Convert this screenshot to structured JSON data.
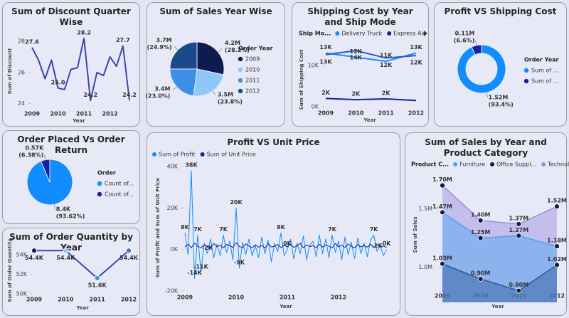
{
  "chart_data": [
    {
      "type": "line",
      "title": "Sum of Discount Quarter Wise",
      "x_label": "Year",
      "y_label": "Sum of Discount",
      "categories": [
        "2009",
        null,
        null,
        null,
        "2010",
        null,
        null,
        null,
        "2011",
        null,
        null,
        null,
        "2012",
        null,
        null,
        null
      ],
      "series": [
        {
          "color": "#3b47b0",
          "values": [
            27.6,
            26.8,
            25.6,
            26.8,
            25.0,
            24.9,
            26.2,
            26.3,
            28.2,
            24.2,
            26.0,
            25.8,
            27.0,
            26.4,
            27.7,
            24.2
          ],
          "value_labels": [
            "27.6",
            null,
            null,
            null,
            "25.0",
            null,
            null,
            null,
            "28.2",
            "24.2",
            null,
            null,
            null,
            null,
            "27.7",
            "24.2"
          ],
          "label_position": "above"
        }
      ],
      "ylim": [
        23.8,
        28.6
      ],
      "yticks": [
        24,
        26,
        28
      ]
    },
    {
      "type": "pie",
      "title": "Sum of Sales Year Wise",
      "legend_title": "Order Year",
      "categories": [
        "2009",
        "2010",
        "2011",
        "2012"
      ],
      "values": [
        4200000,
        3500000,
        3400000,
        3700000
      ],
      "value_labels": [
        "4.2M",
        "3.5M",
        "3.4M",
        "3.7M"
      ],
      "percent_labels": [
        "(28.2%)",
        "(23.8%)",
        "(23.0%)",
        "(24.9%)"
      ],
      "colors": [
        "#0d1b4f",
        "#8fc7f7",
        "#3d8fe6",
        "#1a4a8c"
      ]
    },
    {
      "type": "line",
      "title": "Shipping Cost by Year and Ship Mode",
      "x_label": "Year",
      "y_label": "Sum of Shipping Cost",
      "legend_title": "Ship Mo...",
      "categories": [
        "2009",
        "2010",
        "2011",
        "2012"
      ],
      "series": [
        {
          "name": "Delivery Truck",
          "color": "#118dff",
          "values": [
            13000,
            12000,
            11000,
            13000
          ],
          "value_labels": [
            "13K",
            "12K",
            "11K",
            "13K"
          ],
          "label_position": "above"
        },
        {
          "name": "Express Air",
          "color": "#12239e",
          "values": [
            2000,
            1700,
            1900,
            1500
          ],
          "value_labels": [
            "2K",
            "2K",
            "2K",
            null
          ],
          "label_position": "above"
        },
        {
          "color": "#2f55c8",
          "values": [
            12600,
            13600,
            11800,
            12400
          ],
          "value_labels": [
            "13K",
            "14K",
            "12K",
            "12K"
          ],
          "label_position": "below"
        }
      ],
      "ylim": [
        0,
        15000
      ],
      "yticks": [
        {
          "value": 0,
          "label": "0K"
        },
        {
          "value": 10000,
          "label": "10K"
        }
      ]
    },
    {
      "type": "donut",
      "title": "Profit VS Shipping Cost",
      "legend_title": "Order Year",
      "categories": [
        "Sum of ...",
        "Sum of ..."
      ],
      "values": [
        1520000,
        110000
      ],
      "value_labels": [
        "1.52M",
        "0.11M"
      ],
      "percent_labels": [
        "(93.4%)",
        "(6.6%)"
      ],
      "colors": [
        "#118dff",
        "#12239e"
      ]
    },
    {
      "type": "pie",
      "title": "Order Placed Vs Order Return",
      "legend_title": "Order",
      "categories": [
        "Count of...",
        "Count of..."
      ],
      "values": [
        8400,
        570
      ],
      "value_labels": [
        "8.4K",
        "0.57K"
      ],
      "percent_labels": [
        "(93.62%)",
        "(6.38%)"
      ],
      "colors": [
        "#118dff",
        "#12239e"
      ]
    },
    {
      "type": "line",
      "title": "Sum of Order Quantity by Year",
      "x_label": "Year",
      "y_label": "Sum of Order Quantity",
      "categories": [
        "2009",
        "2010",
        "2011",
        "2012"
      ],
      "series": [
        {
          "color": "#3b47b0",
          "values": [
            54400,
            54400,
            51600,
            54400
          ],
          "value_labels": [
            "54.4K",
            "54.4K",
            "51.6K",
            "54.4K"
          ],
          "label_position": "below",
          "marker_colors": [
            "#0d1b4f",
            "#8fc7f7",
            "#3d8fe6",
            "#3f6fd0"
          ]
        }
      ],
      "ylim": [
        50000,
        55000
      ],
      "yticks": [
        {
          "value": 50000,
          "label": "50K"
        },
        {
          "value": 52000,
          "label": "52K"
        },
        {
          "value": 54000,
          "label": "54K"
        }
      ]
    },
    {
      "type": "line",
      "title": "Profit VS Unit Price",
      "x_label": "Year",
      "y_label": "Sum of Profit and Sum of Unit Price",
      "categories": [
        "2009",
        null,
        null,
        null,
        null,
        null,
        null,
        null,
        null,
        null,
        null,
        null,
        null,
        null,
        null,
        null,
        "2010",
        null,
        null,
        null,
        null,
        null,
        null,
        null,
        null,
        null,
        null,
        null,
        null,
        null,
        null,
        null,
        "2011",
        null,
        null,
        null,
        null,
        null,
        null,
        null,
        null,
        null,
        null,
        null,
        null,
        null,
        null,
        null,
        "2012",
        null,
        null,
        null,
        null,
        null,
        null,
        null,
        null,
        null,
        null,
        null,
        null,
        null,
        null,
        null
      ],
      "series": [
        {
          "name": "Sum of Profit",
          "color": "#118dff",
          "label_position": "above",
          "values": [
            8000,
            -2500,
            38000,
            -14000,
            7000,
            -11000,
            3000,
            -2000,
            5000,
            -4000,
            2500,
            -3000,
            7000,
            -1500,
            4000,
            -5000,
            20000,
            -9000,
            3500,
            -2500,
            5000,
            -3000,
            2000,
            -4000,
            6000,
            -2000,
            4500,
            -6000,
            3000,
            -1000,
            8000,
            -3000,
            0,
            5000,
            -4500,
            3000,
            -2000,
            6500,
            -5000,
            2000,
            4000,
            -3500,
            7000,
            -2000,
            5000,
            -4000,
            7000,
            -1500,
            4000,
            -5000,
            6000,
            -2500,
            3500,
            -4500,
            5500,
            -2000,
            3000,
            -3500,
            4500,
            7000,
            -1000,
            2000,
            -3000,
            0
          ],
          "value_labels": [
            "8K",
            null,
            "38K",
            "-14K",
            "7K",
            "-11K",
            null,
            "-2K",
            null,
            null,
            null,
            null,
            "7K",
            null,
            null,
            null,
            "20K",
            "-9K",
            null,
            null,
            null,
            null,
            null,
            null,
            null,
            null,
            null,
            null,
            null,
            null,
            "8K",
            null,
            "0K",
            null,
            null,
            null,
            null,
            null,
            null,
            null,
            null,
            null,
            null,
            null,
            null,
            null,
            "7K",
            null,
            null,
            null,
            null,
            null,
            null,
            null,
            null,
            null,
            null,
            null,
            null,
            "7K",
            "-1K",
            null,
            null,
            "0K"
          ]
        },
        {
          "name": "Sum of Unit Price",
          "color": "#12239e",
          "values": [
            1200,
            2600,
            800,
            3100,
            1500,
            900,
            2200,
            1700,
            600,
            2900,
            1300,
            2100,
            700,
            2500,
            1800,
            1000,
            3300,
            1400,
            900,
            2700,
            1600,
            800,
            2300,
            1100,
            1900,
            700,
            2800,
            1200,
            1500,
            2400,
            900,
            2000,
            1300,
            2600,
            1000,
            1700,
            3000,
            800,
            2200,
            1400,
            1800,
            900,
            2500,
            1100,
            2100,
            1600,
            700,
            2900,
            1300,
            2000,
            1000,
            2700,
            1500,
            800,
            2300,
            1200,
            1900,
            1100,
            2600,
            900,
            2400,
            1400,
            1700,
            1000
          ]
        }
      ],
      "ylim": [
        -20000,
        40000
      ],
      "yticks": [
        {
          "value": -20000,
          "label": "-20K"
        },
        {
          "value": 0,
          "label": "0K"
        },
        {
          "value": 20000,
          "label": "20K"
        },
        {
          "value": 40000,
          "label": "40K"
        }
      ]
    },
    {
      "type": "area",
      "title": "Sum of Sales by Year and Product Category",
      "x_label": "Year",
      "y_label": "Sum of Sales",
      "legend_title": "Product C...",
      "categories": [
        "2009",
        "2010",
        "2011",
        "2012"
      ],
      "series": [
        {
          "name": "Furniture",
          "color": "#4da3f0",
          "values": [
            1470000,
            1250000,
            1270000,
            1180000
          ],
          "value_labels": [
            "1.47M",
            "1.25M",
            "1.27M",
            "1.18M"
          ],
          "label_position": "above",
          "marker_color": "#0d1b4f"
        },
        {
          "name": "Office Suppl...",
          "color": "#0d1b4f",
          "values": [
            1030000,
            900000,
            800000,
            1020000
          ],
          "value_labels": [
            "1.03M",
            "0.90M",
            "0.80M",
            "1.02M"
          ],
          "label_position": "above",
          "marker_color": "#0d1b4f"
        },
        {
          "name": "Technolo...",
          "color": "#9a8ae0",
          "values": [
            1700000,
            1400000,
            1370000,
            1520000
          ],
          "value_labels": [
            "1.70M",
            "1.40M",
            "1.37M",
            "1.52M"
          ],
          "label_position": "above",
          "marker_color": "#0d1b4f"
        }
      ],
      "ylim": [
        700000,
        1850000
      ],
      "yticks": [
        {
          "value": 1000000,
          "label": "1.0M"
        },
        {
          "value": 1500000,
          "label": "1.5M"
        }
      ]
    }
  ]
}
